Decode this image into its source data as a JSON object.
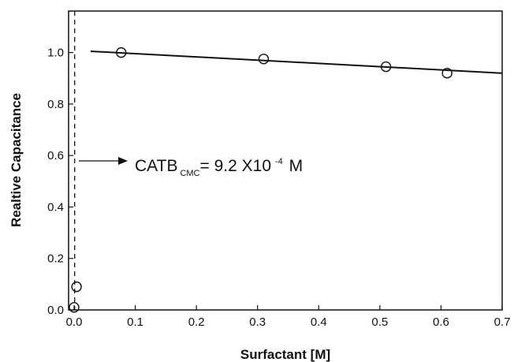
{
  "chart_data": {
    "type": "scatter",
    "xlabel": "Surfactant [M]",
    "ylabel": "Realtive Capacitance",
    "xlim": [
      0.0,
      0.7
    ],
    "ylim": [
      0.0,
      1.1
    ],
    "x_ticks": [
      "0.0",
      "0.1",
      "0.2",
      "0.3",
      "0.4",
      "0.5",
      "0.6",
      "0.7"
    ],
    "y_ticks": [
      "0.0",
      "0.2",
      "0.4",
      "0.6",
      "0.8",
      "1.0"
    ],
    "grid": false,
    "points": [
      {
        "x": 0.0,
        "y": 0.01
      },
      {
        "x": 0.004,
        "y": 0.09
      },
      {
        "x": 0.077,
        "y": 1.0
      },
      {
        "x": 0.31,
        "y": 0.975
      },
      {
        "x": 0.51,
        "y": 0.945
      },
      {
        "x": 0.61,
        "y": 0.92
      }
    ],
    "fit_line": {
      "x": [
        0.027,
        0.7
      ],
      "y": [
        1.005,
        0.92
      ]
    },
    "cmc_line_x": 0.00092,
    "annotation": {
      "main": "CATB",
      "subscript": "CMC",
      "value": "= 9.2 X10",
      "superscript": "-4",
      "unit": " M"
    }
  }
}
